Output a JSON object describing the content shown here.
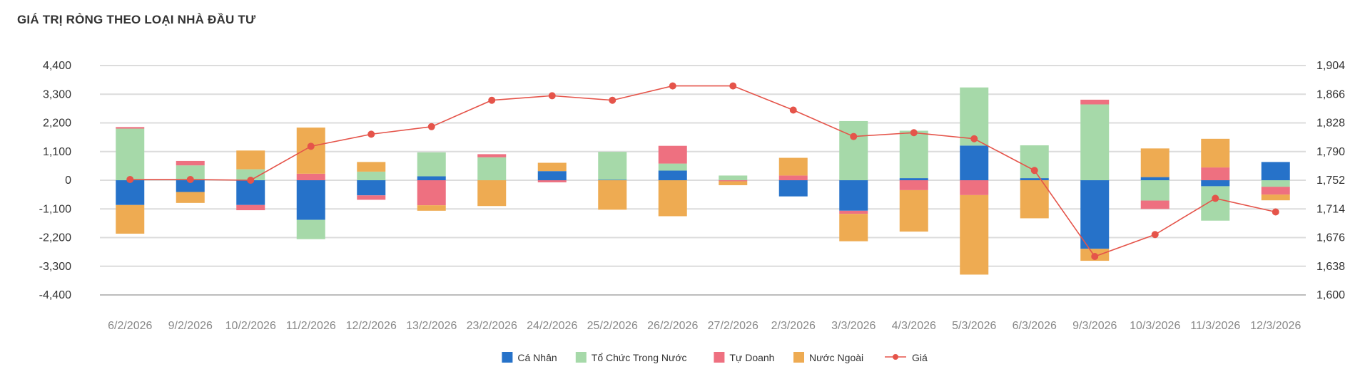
{
  "chart_data": {
    "type": "bar",
    "stacked": true,
    "title": "GIÁ TRỊ RÒNG THEO LOẠI NHÀ ĐẦU TƯ",
    "categories": [
      "6/2/2026",
      "9/2/2026",
      "10/2/2026",
      "11/2/2026",
      "12/2/2026",
      "13/2/2026",
      "23/2/2026",
      "24/2/2026",
      "25/2/2026",
      "26/2/2026",
      "27/2/2026",
      "2/3/2026",
      "3/3/2026",
      "4/3/2026",
      "5/3/2026",
      "6/3/2026",
      "9/3/2026",
      "10/3/2026",
      "11/3/2026",
      "12/3/2026"
    ],
    "ylim": [
      -4400,
      4400
    ],
    "yticks": [
      4400,
      3300,
      2200,
      1100,
      0,
      -1100,
      -2200,
      -3300,
      -4400
    ],
    "yticks_labels": [
      "4,400",
      "3,300",
      "2,200",
      "1,100",
      "0",
      "-1,100",
      "-2,200",
      "-3,300",
      "-4,400"
    ],
    "y2lim": [
      1600,
      1904
    ],
    "y2ticks": [
      1904,
      1866,
      1828,
      1790,
      1752,
      1714,
      1676,
      1638,
      1600
    ],
    "y2ticks_labels": [
      "1,904",
      "1,866",
      "1,828",
      "1,790",
      "1,752",
      "1,714",
      "1,676",
      "1,638",
      "1,600"
    ],
    "series": [
      {
        "name": "Cá Nhân",
        "color": "#2672c9",
        "values": [
          -950,
          -450,
          -950,
          -1520,
          -580,
          150,
          0,
          350,
          20,
          370,
          0,
          -620,
          -1170,
          80,
          1330,
          80,
          -2630,
          120,
          -230,
          700
        ]
      },
      {
        "name": "Tổ Chức Trong Nước",
        "color": "#a6d9a9",
        "values": [
          1980,
          570,
          420,
          -740,
          330,
          920,
          880,
          0,
          1070,
          270,
          180,
          0,
          2270,
          1820,
          2230,
          1260,
          2910,
          -780,
          -1320,
          -250
        ]
      },
      {
        "name": "Tự Doanh",
        "color": "#ee7080",
        "values": [
          60,
          170,
          -200,
          250,
          -170,
          -960,
          120,
          -80,
          0,
          680,
          -40,
          180,
          -120,
          -380,
          -570,
          0,
          180,
          -320,
          490,
          -300
        ]
      },
      {
        "name": "Nước Ngoài",
        "color": "#eeab52",
        "values": [
          -1100,
          -420,
          720,
          1770,
          370,
          -210,
          -990,
          320,
          -1130,
          -1380,
          -150,
          680,
          -1050,
          -1590,
          -3050,
          -1460,
          -460,
          1100,
          1100,
          -220
        ]
      }
    ],
    "line": {
      "name": "Giá",
      "color": "#e5544a",
      "values": [
        1753,
        1753,
        1752,
        1797,
        1813,
        1823,
        1858,
        1864,
        1858,
        1877,
        1877,
        1845,
        1810,
        1815,
        1807,
        1765,
        1651,
        1680,
        1728,
        1710
      ]
    },
    "legend": {
      "position": "bottom"
    },
    "grid": true
  }
}
